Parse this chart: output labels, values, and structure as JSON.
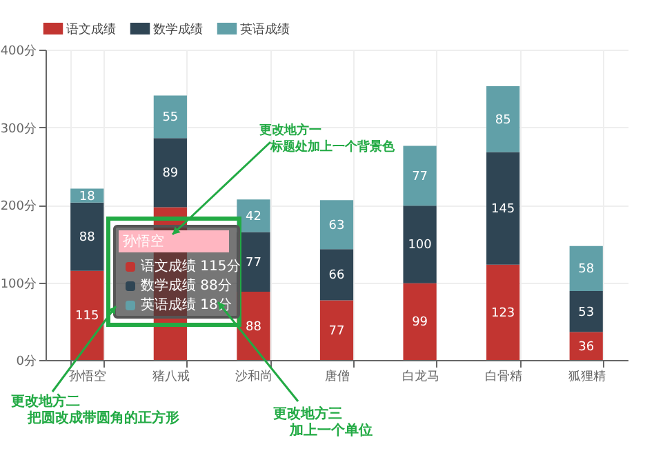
{
  "chart_data": {
    "type": "bar",
    "stacked": true,
    "categories": [
      "孙悟空",
      "猪八戒",
      "沙和尚",
      "唐僧",
      "白龙马",
      "白骨精",
      "狐狸精"
    ],
    "series": [
      {
        "name": "语文成绩",
        "color": "#c23531",
        "values": [
          115,
          197,
          88,
          77,
          99,
          123,
          36
        ],
        "value_labels": [
          "115",
          null,
          "88",
          "77",
          "99",
          "123",
          "36"
        ]
      },
      {
        "name": "数学成绩",
        "color": "#2f4554",
        "values": [
          88,
          89,
          77,
          66,
          100,
          145,
          53
        ],
        "value_labels": [
          "88",
          "89",
          "77",
          "66",
          "100",
          "145",
          "53"
        ]
      },
      {
        "name": "英语成绩",
        "color": "#61a0a8",
        "values": [
          18,
          55,
          42,
          63,
          77,
          85,
          58
        ],
        "value_labels": [
          "18",
          "55",
          "42",
          "63",
          "77",
          "85",
          "58"
        ]
      }
    ],
    "ylim": [
      0,
      400
    ],
    "yticks": [
      {
        "value": 0,
        "label": "0分"
      },
      {
        "value": 100,
        "label": "100分"
      },
      {
        "value": 200,
        "label": "200分"
      },
      {
        "value": 300,
        "label": "300分"
      },
      {
        "value": 400,
        "label": "400分"
      }
    ],
    "grid": true,
    "legend": "top",
    "annotations": [
      "孙悟空",
      "语文成绩 115分",
      "数学成绩 88分",
      "英语成绩 18分",
      "更改地方一",
      "标题处加上一个背景色",
      "更改地方二",
      "把圆改成带圆角的正方形",
      "更改地方三",
      "加上一个单位"
    ]
  }
}
